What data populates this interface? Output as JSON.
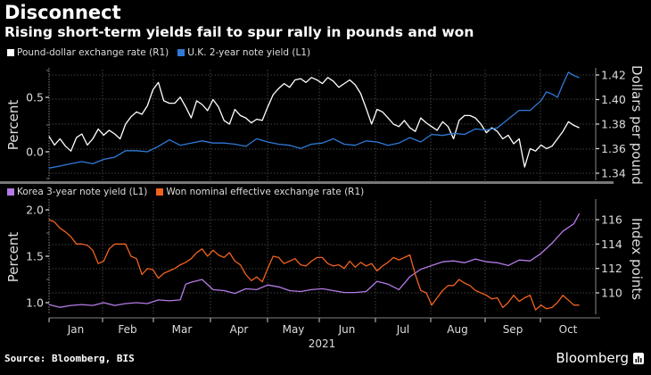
{
  "header": {
    "title": "Disconnect",
    "subtitle": "Rising short-term yields fail to spur rally in pounds and won"
  },
  "footer": {
    "source": "Source: Bloomberg, BIS",
    "brand": "Bloomberg"
  },
  "chart_data": [
    {
      "type": "line",
      "panel": "top",
      "legend": [
        {
          "name": "Pound-dollar exchange rate (R1)",
          "color": "#ffffff"
        },
        {
          "name": "U.K. 2-year note yield (L1)",
          "color": "#2f7ad6"
        }
      ],
      "ylabel_left": "Percent",
      "ylabel_right": "Dollars per pound",
      "yticks_left": [
        "0.0",
        "0.5"
      ],
      "yticks_right": [
        "1.34",
        "1.36",
        "1.38",
        "1.40",
        "1.42"
      ],
      "ylim_left": [
        -0.17,
        0.78
      ],
      "ylim_right": [
        1.335,
        1.427
      ],
      "grid": true,
      "series": [
        {
          "name": "Pound-dollar exchange rate (R1)",
          "axis": "right",
          "color": "#ffffff",
          "x": [
            0,
            0.01,
            0.02,
            0.03,
            0.04,
            0.05,
            0.06,
            0.07,
            0.08,
            0.09,
            0.1,
            0.11,
            0.12,
            0.13,
            0.14,
            0.15,
            0.16,
            0.17,
            0.18,
            0.19,
            0.2,
            0.21,
            0.22,
            0.23,
            0.24,
            0.25,
            0.26,
            0.27,
            0.28,
            0.29,
            0.3,
            0.31,
            0.32,
            0.33,
            0.34,
            0.35,
            0.36,
            0.37,
            0.38,
            0.39,
            0.4,
            0.41,
            0.42,
            0.43,
            0.44,
            0.45,
            0.46,
            0.47,
            0.48,
            0.49,
            0.5,
            0.51,
            0.52,
            0.53,
            0.54,
            0.55,
            0.56,
            0.57,
            0.58,
            0.59,
            0.6,
            0.61,
            0.62,
            0.63,
            0.64,
            0.65,
            0.66,
            0.67,
            0.68,
            0.69,
            0.7,
            0.71,
            0.72,
            0.73,
            0.74,
            0.75,
            0.76,
            0.77,
            0.78,
            0.79,
            0.8,
            0.81,
            0.82,
            0.83,
            0.84,
            0.85,
            0.86,
            0.87,
            0.88,
            0.89,
            0.9,
            0.91,
            0.92,
            0.93,
            0.94,
            0.95,
            0.96,
            0.97
          ],
          "values": [
            1.37,
            1.363,
            1.368,
            1.362,
            1.358,
            1.369,
            1.372,
            1.363,
            1.368,
            1.376,
            1.371,
            1.375,
            1.372,
            1.368,
            1.38,
            1.386,
            1.39,
            1.388,
            1.395,
            1.408,
            1.414,
            1.399,
            1.397,
            1.397,
            1.402,
            1.394,
            1.385,
            1.399,
            1.396,
            1.391,
            1.4,
            1.394,
            1.383,
            1.38,
            1.392,
            1.387,
            1.385,
            1.381,
            1.384,
            1.383,
            1.394,
            1.404,
            1.409,
            1.413,
            1.41,
            1.416,
            1.417,
            1.414,
            1.418,
            1.416,
            1.413,
            1.418,
            1.415,
            1.41,
            1.413,
            1.416,
            1.412,
            1.405,
            1.393,
            1.38,
            1.392,
            1.39,
            1.385,
            1.38,
            1.378,
            1.383,
            1.377,
            1.374,
            1.385,
            1.381,
            1.378,
            1.375,
            1.382,
            1.378,
            1.368,
            1.383,
            1.387,
            1.387,
            1.385,
            1.38,
            1.373,
            1.377,
            1.374,
            1.368,
            1.371,
            1.364,
            1.368,
            1.345,
            1.36,
            1.358,
            1.363,
            1.36,
            1.362,
            1.368,
            1.374,
            1.382,
            1.379,
            1.377
          ]
        },
        {
          "name": "U.K. 2-year note yield (L1)",
          "axis": "left",
          "color": "#2f7ad6",
          "x": [
            0,
            0.02,
            0.04,
            0.06,
            0.08,
            0.1,
            0.12,
            0.14,
            0.16,
            0.18,
            0.2,
            0.22,
            0.24,
            0.26,
            0.28,
            0.3,
            0.32,
            0.34,
            0.36,
            0.38,
            0.4,
            0.42,
            0.44,
            0.46,
            0.48,
            0.5,
            0.52,
            0.54,
            0.56,
            0.58,
            0.6,
            0.62,
            0.64,
            0.66,
            0.68,
            0.7,
            0.72,
            0.74,
            0.76,
            0.78,
            0.8,
            0.82,
            0.84,
            0.86,
            0.88,
            0.9,
            0.91,
            0.92,
            0.93,
            0.94,
            0.95,
            0.96,
            0.97
          ],
          "values": [
            -0.15,
            -0.13,
            -0.11,
            -0.09,
            -0.11,
            -0.07,
            -0.05,
            0.01,
            0.01,
            0.0,
            0.05,
            0.11,
            0.06,
            0.08,
            0.1,
            0.08,
            0.08,
            0.07,
            0.05,
            0.12,
            0.09,
            0.07,
            0.06,
            0.03,
            0.07,
            0.08,
            0.12,
            0.07,
            0.06,
            0.1,
            0.09,
            0.06,
            0.08,
            0.13,
            0.09,
            0.16,
            0.15,
            0.17,
            0.16,
            0.21,
            0.2,
            0.22,
            0.3,
            0.38,
            0.38,
            0.47,
            0.55,
            0.53,
            0.5,
            0.62,
            0.73,
            0.7,
            0.68
          ]
        }
      ]
    },
    {
      "type": "line",
      "panel": "bottom",
      "legend": [
        {
          "name": "Korea 3-year note yield (L1)",
          "color": "#b47ae6"
        },
        {
          "name": "Won nominal effective exchange rate (R1)",
          "color": "#f0621e"
        }
      ],
      "ylabel_left": "Percent",
      "ylabel_right": "Index points",
      "yticks_left": [
        "1.0",
        "1.5",
        "2.0"
      ],
      "yticks_right": [
        "110",
        "112",
        "114",
        "116"
      ],
      "ylim_left": [
        0.87,
        2.15
      ],
      "ylim_right": [
        108.2,
        116.9
      ],
      "grid": true,
      "series": [
        {
          "name": "Korea 3-year note yield (L1)",
          "axis": "left",
          "color": "#b47ae6",
          "x": [
            0,
            0.02,
            0.04,
            0.06,
            0.08,
            0.1,
            0.12,
            0.14,
            0.16,
            0.18,
            0.2,
            0.22,
            0.24,
            0.25,
            0.26,
            0.28,
            0.3,
            0.32,
            0.34,
            0.36,
            0.38,
            0.4,
            0.42,
            0.44,
            0.46,
            0.48,
            0.5,
            0.52,
            0.54,
            0.56,
            0.58,
            0.6,
            0.62,
            0.64,
            0.66,
            0.68,
            0.7,
            0.72,
            0.74,
            0.76,
            0.78,
            0.8,
            0.82,
            0.84,
            0.86,
            0.88,
            0.9,
            0.92,
            0.94,
            0.96,
            0.97
          ],
          "values": [
            0.98,
            0.95,
            0.97,
            0.98,
            0.97,
            1.0,
            0.97,
            0.99,
            1.0,
            0.99,
            1.03,
            1.02,
            1.03,
            1.2,
            1.22,
            1.25,
            1.14,
            1.13,
            1.1,
            1.15,
            1.14,
            1.19,
            1.17,
            1.13,
            1.12,
            1.14,
            1.15,
            1.13,
            1.11,
            1.11,
            1.12,
            1.23,
            1.2,
            1.14,
            1.28,
            1.36,
            1.4,
            1.44,
            1.45,
            1.43,
            1.47,
            1.44,
            1.43,
            1.4,
            1.46,
            1.45,
            1.53,
            1.64,
            1.77,
            1.85,
            1.96
          ]
        },
        {
          "name": "Won nominal effective exchange rate (R1)",
          "axis": "right",
          "color": "#f0621e",
          "x": [
            0,
            0.01,
            0.02,
            0.03,
            0.04,
            0.05,
            0.06,
            0.07,
            0.08,
            0.09,
            0.1,
            0.11,
            0.12,
            0.13,
            0.14,
            0.15,
            0.16,
            0.17,
            0.18,
            0.19,
            0.2,
            0.21,
            0.22,
            0.23,
            0.24,
            0.25,
            0.26,
            0.27,
            0.28,
            0.29,
            0.3,
            0.31,
            0.32,
            0.33,
            0.34,
            0.35,
            0.36,
            0.37,
            0.38,
            0.39,
            0.4,
            0.41,
            0.42,
            0.43,
            0.44,
            0.45,
            0.46,
            0.47,
            0.48,
            0.49,
            0.5,
            0.51,
            0.52,
            0.53,
            0.54,
            0.55,
            0.56,
            0.57,
            0.58,
            0.59,
            0.6,
            0.61,
            0.62,
            0.63,
            0.64,
            0.65,
            0.66,
            0.67,
            0.68,
            0.69,
            0.7,
            0.71,
            0.72,
            0.73,
            0.74,
            0.75,
            0.76,
            0.77,
            0.78,
            0.79,
            0.8,
            0.81,
            0.82,
            0.83,
            0.84,
            0.85,
            0.86,
            0.87,
            0.88,
            0.89,
            0.9,
            0.91,
            0.92,
            0.93,
            0.94,
            0.95,
            0.96,
            0.97
          ],
          "values": [
            116.0,
            115.8,
            115.3,
            115.0,
            114.6,
            114.0,
            114.0,
            113.9,
            113.5,
            112.4,
            112.6,
            113.6,
            114.0,
            114.0,
            114.0,
            113.0,
            112.8,
            111.5,
            112.0,
            111.9,
            111.2,
            111.6,
            111.8,
            112.0,
            112.3,
            112.5,
            112.8,
            113.3,
            113.6,
            113.0,
            113.5,
            113.1,
            112.9,
            113.3,
            112.6,
            112.3,
            111.5,
            111.0,
            111.3,
            110.9,
            112.0,
            113.0,
            112.9,
            112.4,
            112.6,
            112.8,
            112.3,
            112.2,
            112.6,
            112.9,
            112.9,
            112.4,
            112.2,
            112.3,
            112.0,
            112.6,
            112.1,
            112.5,
            112.2,
            112.4,
            111.8,
            112.2,
            112.5,
            112.9,
            112.7,
            112.9,
            113.1,
            111.5,
            110.2,
            110.0,
            109.0,
            109.6,
            110.2,
            110.6,
            110.6,
            111.1,
            110.8,
            110.6,
            110.2,
            110.0,
            109.8,
            109.5,
            109.6,
            108.8,
            109.2,
            109.8,
            109.3,
            109.6,
            109.8,
            108.6,
            109.0,
            108.7,
            108.8,
            109.2,
            109.8,
            109.4,
            109.0,
            109.0
          ]
        }
      ]
    }
  ],
  "xaxis": {
    "months": [
      "Jan",
      "Feb",
      "Mar",
      "Apr",
      "May",
      "Jun",
      "Jul",
      "Aug",
      "Sep",
      "Oct"
    ],
    "year": "2021"
  }
}
